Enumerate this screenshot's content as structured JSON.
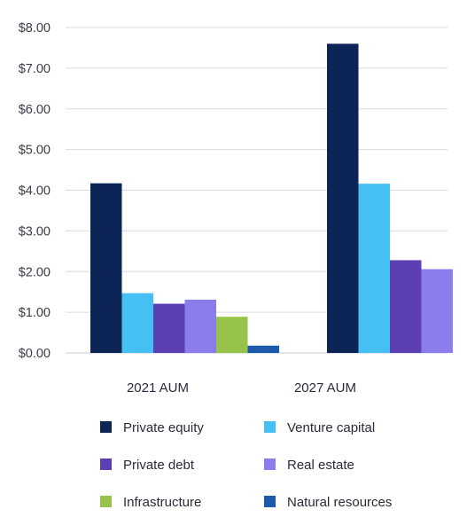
{
  "chart_data": {
    "type": "bar",
    "title": "",
    "xlabel": "",
    "ylabel": "",
    "categories": [
      "2021 AUM",
      "2027 AUM"
    ],
    "ylim": [
      0,
      8
    ],
    "yticks": [
      "$0.00",
      "$1.00",
      "$2.00",
      "$3.00",
      "$4.00",
      "$5.00",
      "$6.00",
      "$7.00",
      "$8.00"
    ],
    "grid": true,
    "legend_position": "bottom",
    "series": [
      {
        "name": "Private equity",
        "color": "#0d2457",
        "values": [
          4.17,
          7.6
        ]
      },
      {
        "name": "Venture capital",
        "color": "#46bff2",
        "values": [
          1.47,
          4.16
        ]
      },
      {
        "name": "Private debt",
        "color": "#5c3fb3",
        "values": [
          1.21,
          2.28
        ]
      },
      {
        "name": "Real estate",
        "color": "#8c7ded",
        "values": [
          1.31,
          2.06
        ]
      },
      {
        "name": "Infrastructure",
        "color": "#98c34a",
        "values": [
          0.89,
          0
        ]
      },
      {
        "name": "Natural resources",
        "color": "#1c5bab",
        "values": [
          0.18,
          0
        ]
      }
    ]
  }
}
